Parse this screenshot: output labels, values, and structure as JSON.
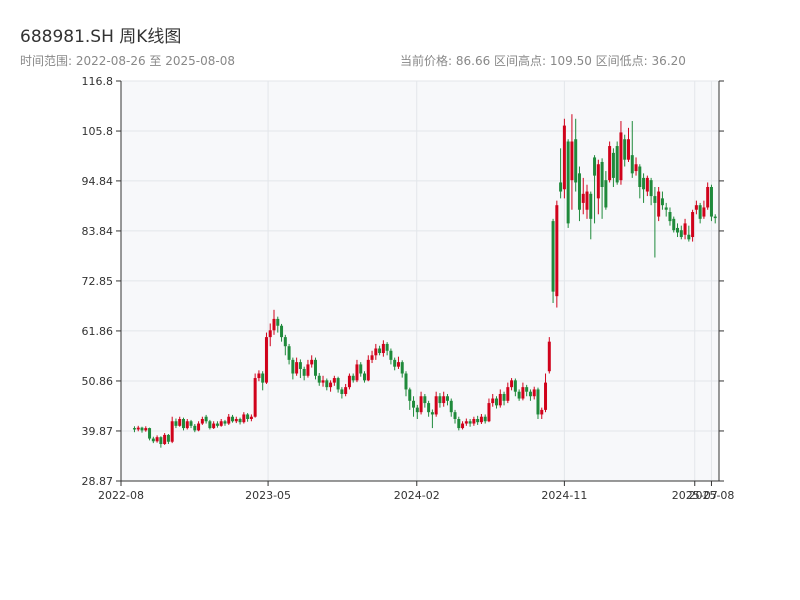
{
  "header": {
    "title": "688981.SH 周K线图",
    "range_text": "时间范围: 2022-08-26 至 2025-08-08",
    "stats_text": "当前价格: 86.66   区间高点: 109.50   区间低点: 36.20"
  },
  "colors": {
    "up": "#d0021b",
    "down": "#1f8a3b",
    "background": "#f7f8fa",
    "grid": "#e3e6ea",
    "axis": "#333333"
  },
  "chart_data": {
    "type": "candlestick",
    "title": "688981.SH 周K线图",
    "xlabel": "",
    "ylabel": "",
    "ylim": [
      28.87,
      116.8
    ],
    "y_ticks": [
      "28.87",
      "39.87",
      "50.86",
      "61.86",
      "72.85",
      "83.84",
      "94.84",
      "105.8",
      "116.8"
    ],
    "x_ticks": [
      {
        "label": "2022-08",
        "date": "2022-08-01"
      },
      {
        "label": "2023-05",
        "date": "2023-05-01"
      },
      {
        "label": "2024-02",
        "date": "2024-02-01"
      },
      {
        "label": "2024-11",
        "date": "2024-11-01"
      },
      {
        "label": "2025-07",
        "date": "2025-07-01"
      },
      {
        "label": "2025-08",
        "date": "2025-08-01"
      }
    ],
    "x_range": [
      "2022-08-01",
      "2025-08-15"
    ],
    "grid": true,
    "candles": [
      [
        "2022-08-26",
        40.5,
        40.2,
        40.9,
        39.6
      ],
      [
        "2022-09-02",
        40.2,
        40.6,
        41.0,
        39.8
      ],
      [
        "2022-09-09",
        40.6,
        40.0,
        40.8,
        39.5
      ],
      [
        "2022-09-16",
        40.0,
        40.5,
        40.9,
        39.7
      ],
      [
        "2022-09-23",
        40.5,
        38.2,
        40.6,
        37.8
      ],
      [
        "2022-09-30",
        38.2,
        37.6,
        38.6,
        37.2
      ],
      [
        "2022-10-07",
        37.6,
        38.5,
        38.9,
        37.3
      ],
      [
        "2022-10-14",
        38.5,
        37.0,
        38.7,
        36.2
      ],
      [
        "2022-10-21",
        37.0,
        39.0,
        39.4,
        36.8
      ],
      [
        "2022-10-28",
        39.0,
        37.5,
        39.2,
        37.0
      ],
      [
        "2022-11-04",
        37.5,
        42.0,
        43.0,
        37.2
      ],
      [
        "2022-11-11",
        42.0,
        41.0,
        42.6,
        40.5
      ],
      [
        "2022-11-18",
        41.0,
        42.5,
        43.0,
        40.8
      ],
      [
        "2022-11-25",
        42.5,
        40.5,
        42.8,
        40.0
      ],
      [
        "2022-12-02",
        40.5,
        42.0,
        42.5,
        40.2
      ],
      [
        "2022-12-09",
        42.0,
        41.0,
        42.3,
        40.5
      ],
      [
        "2022-12-16",
        41.0,
        40.0,
        41.4,
        39.6
      ],
      [
        "2022-12-23",
        40.0,
        41.5,
        42.0,
        39.8
      ],
      [
        "2022-12-30",
        41.5,
        42.5,
        43.0,
        41.2
      ],
      [
        "2022-01-06",
        42.5,
        43.0,
        43.8,
        42.0
      ],
      [
        "2023-01-06",
        43.0,
        42.0,
        43.4,
        41.5
      ],
      [
        "2023-01-13",
        42.0,
        40.5,
        42.3,
        40.2
      ],
      [
        "2023-01-20",
        40.5,
        41.5,
        42.0,
        40.3
      ],
      [
        "2023-01-27",
        41.5,
        41.0,
        42.0,
        40.6
      ],
      [
        "2023-02-03",
        41.0,
        42.0,
        42.5,
        40.8
      ],
      [
        "2023-02-10",
        42.0,
        41.5,
        42.3,
        41.0
      ],
      [
        "2023-02-17",
        41.5,
        43.0,
        43.6,
        41.2
      ],
      [
        "2023-02-24",
        43.0,
        42.0,
        43.4,
        41.7
      ],
      [
        "2023-03-03",
        42.0,
        42.5,
        43.0,
        41.6
      ],
      [
        "2023-03-10",
        42.5,
        41.8,
        42.8,
        41.3
      ],
      [
        "2023-03-17",
        41.8,
        43.5,
        44.0,
        41.5
      ],
      [
        "2023-03-24",
        43.5,
        42.5,
        43.8,
        41.9
      ],
      [
        "2023-03-31",
        42.5,
        43.0,
        43.5,
        42.0
      ],
      [
        "2023-04-07",
        43.0,
        51.5,
        52.5,
        42.8
      ],
      [
        "2023-04-14",
        51.5,
        52.5,
        53.2,
        50.8
      ],
      [
        "2023-04-21",
        52.5,
        50.5,
        53.0,
        48.8
      ],
      [
        "2023-04-28",
        50.5,
        60.5,
        61.5,
        50.2
      ],
      [
        "2023-05-05",
        60.5,
        62.0,
        63.5,
        58.5
      ],
      [
        "2023-05-12",
        62.0,
        64.5,
        66.5,
        61.0
      ],
      [
        "2023-05-19",
        64.5,
        63.0,
        65.0,
        61.5
      ],
      [
        "2023-05-26",
        63.0,
        60.5,
        63.4,
        59.5
      ],
      [
        "2023-06-02",
        60.5,
        58.5,
        61.0,
        56.5
      ],
      [
        "2023-06-09",
        58.5,
        55.5,
        59.0,
        54.5
      ],
      [
        "2023-06-16",
        55.5,
        52.5,
        56.0,
        51.2
      ],
      [
        "2023-06-23",
        52.5,
        55.0,
        56.0,
        52.0
      ],
      [
        "2023-06-30",
        55.0,
        53.5,
        55.6,
        51.5
      ],
      [
        "2023-07-07",
        53.5,
        52.0,
        54.0,
        51.0
      ],
      [
        "2023-07-14",
        52.0,
        54.5,
        55.5,
        51.6
      ],
      [
        "2023-07-21",
        54.5,
        55.5,
        56.5,
        53.8
      ],
      [
        "2023-07-28",
        55.5,
        52.0,
        56.0,
        51.2
      ],
      [
        "2023-08-04",
        52.0,
        50.5,
        52.6,
        49.8
      ],
      [
        "2023-08-11",
        50.5,
        51.0,
        52.0,
        49.6
      ],
      [
        "2023-08-18",
        51.0,
        49.5,
        51.4,
        48.8
      ],
      [
        "2023-08-25",
        49.5,
        50.5,
        51.0,
        48.5
      ],
      [
        "2023-09-01",
        50.5,
        51.5,
        52.0,
        49.8
      ],
      [
        "2023-09-08",
        51.5,
        49.0,
        51.8,
        48.3
      ],
      [
        "2023-09-15",
        49.0,
        48.0,
        49.5,
        47.0
      ],
      [
        "2023-09-22",
        48.0,
        49.5,
        50.2,
        47.5
      ],
      [
        "2023-09-29",
        49.5,
        52.0,
        52.5,
        49.0
      ],
      [
        "2023-10-06",
        52.0,
        51.0,
        52.5,
        50.5
      ],
      [
        "2023-10-13",
        51.0,
        54.5,
        55.5,
        50.6
      ],
      [
        "2023-10-20",
        54.5,
        52.5,
        55.0,
        51.8
      ],
      [
        "2023-10-27",
        52.5,
        51.0,
        53.0,
        50.5
      ],
      [
        "2023-11-03",
        51.0,
        55.5,
        56.5,
        50.8
      ],
      [
        "2023-11-10",
        55.5,
        56.5,
        57.5,
        54.8
      ],
      [
        "2023-11-17",
        56.5,
        58.0,
        59.0,
        55.5
      ],
      [
        "2023-11-24",
        58.0,
        57.0,
        58.6,
        56.5
      ],
      [
        "2023-12-01",
        57.0,
        59.0,
        59.8,
        56.2
      ],
      [
        "2023-12-08",
        59.0,
        57.5,
        59.4,
        56.5
      ],
      [
        "2023-12-15",
        57.5,
        55.5,
        58.0,
        54.5
      ],
      [
        "2023-12-22",
        55.5,
        54.0,
        56.0,
        53.2
      ],
      [
        "2023-12-29",
        54.0,
        55.0,
        56.2,
        53.5
      ],
      [
        "2024-01-05",
        55.0,
        52.5,
        55.4,
        51.6
      ],
      [
        "2024-01-12",
        52.5,
        49.0,
        53.0,
        47.5
      ],
      [
        "2024-01-19",
        49.0,
        46.5,
        49.4,
        44.5
      ],
      [
        "2024-01-26",
        46.5,
        45.0,
        47.5,
        43.0
      ],
      [
        "2024-02-02",
        45.0,
        44.0,
        45.6,
        42.5
      ],
      [
        "2024-02-09",
        44.0,
        47.5,
        48.5,
        43.5
      ],
      [
        "2024-02-16",
        47.5,
        46.0,
        48.0,
        45.0
      ],
      [
        "2024-02-23",
        46.0,
        44.0,
        46.5,
        43.0
      ],
      [
        "2024-03-01",
        44.0,
        43.5,
        44.6,
        40.5
      ],
      [
        "2024-03-08",
        43.5,
        47.5,
        48.5,
        43.0
      ],
      [
        "2024-03-15",
        47.5,
        46.0,
        48.2,
        45.0
      ],
      [
        "2024-03-22",
        46.0,
        47.5,
        48.5,
        45.2
      ],
      [
        "2024-03-29",
        47.5,
        46.5,
        48.0,
        45.5
      ],
      [
        "2024-04-05",
        46.5,
        44.0,
        47.0,
        43.0
      ],
      [
        "2024-04-12",
        44.0,
        42.5,
        44.5,
        41.5
      ],
      [
        "2024-04-19",
        42.5,
        40.5,
        43.0,
        40.0
      ],
      [
        "2024-04-26",
        40.5,
        41.5,
        42.0,
        40.2
      ],
      [
        "2024-05-03",
        41.5,
        42.0,
        42.6,
        41.0
      ],
      [
        "2024-05-10",
        42.0,
        41.5,
        42.5,
        40.8
      ],
      [
        "2024-05-17",
        41.5,
        42.5,
        43.0,
        41.0
      ],
      [
        "2024-05-24",
        42.5,
        41.8,
        43.2,
        41.2
      ],
      [
        "2024-05-31",
        41.8,
        43.0,
        43.6,
        41.4
      ],
      [
        "2024-06-07",
        43.0,
        42.0,
        43.5,
        41.5
      ],
      [
        "2024-06-14",
        42.0,
        46.0,
        47.0,
        41.8
      ],
      [
        "2024-06-21",
        46.0,
        47.0,
        48.0,
        45.2
      ],
      [
        "2024-06-28",
        47.0,
        45.5,
        47.5,
        44.8
      ],
      [
        "2024-07-05",
        45.5,
        48.0,
        49.0,
        45.0
      ],
      [
        "2024-07-12",
        48.0,
        46.5,
        48.5,
        45.5
      ],
      [
        "2024-07-19",
        46.5,
        49.5,
        50.5,
        46.0
      ],
      [
        "2024-07-26",
        49.5,
        51.0,
        51.5,
        48.8
      ],
      [
        "2024-08-02",
        51.0,
        48.5,
        51.4,
        47.5
      ],
      [
        "2024-08-09",
        48.5,
        47.0,
        49.0,
        46.5
      ],
      [
        "2024-08-16",
        47.0,
        49.5,
        50.5,
        46.6
      ],
      [
        "2024-08-23",
        49.5,
        48.5,
        50.0,
        47.5
      ],
      [
        "2024-08-30",
        48.5,
        47.5,
        49.0,
        46.5
      ],
      [
        "2024-09-06",
        47.5,
        49.0,
        49.6,
        46.8
      ],
      [
        "2024-09-13",
        49.0,
        43.5,
        49.4,
        42.5
      ],
      [
        "2024-09-20",
        43.5,
        44.5,
        45.0,
        42.5
      ],
      [
        "2024-09-27",
        44.5,
        50.5,
        52.5,
        44.0
      ],
      [
        "2024-10-04",
        53.0,
        59.5,
        60.5,
        52.5
      ],
      [
        "2024-10-11",
        86.0,
        70.5,
        86.5,
        68.0
      ],
      [
        "2024-10-18",
        69.5,
        89.5,
        90.5,
        67.0
      ],
      [
        "2024-10-25",
        94.5,
        92.5,
        102.0,
        91.0
      ],
      [
        "2024-11-01",
        93.0,
        107.0,
        108.5,
        91.0
      ],
      [
        "2024-11-08",
        103.5,
        85.5,
        104.0,
        84.5
      ],
      [
        "2024-11-15",
        95.0,
        103.5,
        109.5,
        88.5
      ],
      [
        "2024-11-22",
        104.0,
        94.5,
        108.5,
        92.5
      ],
      [
        "2024-11-29",
        96.5,
        88.5,
        98.0,
        86.0
      ],
      [
        "2024-12-06",
        90.0,
        92.0,
        95.5,
        87.5
      ],
      [
        "2024-12-13",
        88.5,
        92.5,
        94.0,
        86.5
      ],
      [
        "2024-12-20",
        92.0,
        86.5,
        92.5,
        82.0
      ],
      [
        "2024-12-27",
        100.0,
        96.0,
        100.5,
        85.5
      ],
      [
        "2025-01-03",
        91.0,
        98.5,
        99.5,
        87.5
      ],
      [
        "2025-01-10",
        99.0,
        93.5,
        99.8,
        86.5
      ],
      [
        "2025-01-17",
        95.0,
        89.0,
        97.0,
        88.5
      ],
      [
        "2025-01-24",
        95.0,
        102.5,
        103.5,
        94.5
      ],
      [
        "2025-01-31",
        101.0,
        95.5,
        102.0,
        93.5
      ],
      [
        "2025-02-07",
        102.5,
        94.5,
        103.5,
        94.0
      ],
      [
        "2025-02-14",
        95.0,
        105.5,
        108.0,
        94.0
      ],
      [
        "2025-02-21",
        104.0,
        99.5,
        105.0,
        98.0
      ],
      [
        "2025-02-28",
        99.5,
        104.0,
        106.5,
        99.0
      ],
      [
        "2025-03-07",
        100.5,
        96.5,
        108.0,
        95.5
      ],
      [
        "2025-03-14",
        97.0,
        98.5,
        100.0,
        96.0
      ],
      [
        "2025-03-21",
        98.0,
        93.5,
        98.5,
        91.0
      ],
      [
        "2025-03-28",
        95.5,
        93.0,
        96.5,
        90.0
      ],
      [
        "2025-04-04",
        92.5,
        95.5,
        96.0,
        91.5
      ],
      [
        "2025-04-11",
        95.0,
        91.5,
        95.5,
        89.5
      ],
      [
        "2025-04-18",
        91.5,
        90.0,
        93.5,
        78.0
      ],
      [
        "2025-04-25",
        87.0,
        92.5,
        93.5,
        86.0
      ],
      [
        "2025-05-02",
        91.0,
        89.5,
        92.5,
        88.5
      ],
      [
        "2025-05-09",
        89.0,
        88.5,
        90.0,
        87.0
      ],
      [
        "2025-05-16",
        88.0,
        86.0,
        89.0,
        85.0
      ],
      [
        "2025-05-23",
        86.5,
        84.0,
        87.0,
        83.5
      ],
      [
        "2025-05-30",
        84.5,
        83.5,
        85.5,
        82.5
      ],
      [
        "2025-06-06",
        84.0,
        82.5,
        85.0,
        82.0
      ],
      [
        "2025-06-13",
        83.0,
        85.5,
        86.5,
        82.0
      ],
      [
        "2025-06-20",
        83.0,
        82.0,
        85.0,
        81.5
      ],
      [
        "2025-06-27",
        82.5,
        88.0,
        88.5,
        81.5
      ],
      [
        "2025-07-04",
        88.5,
        89.5,
        90.5,
        87.5
      ],
      [
        "2025-07-11",
        89.5,
        86.5,
        90.0,
        85.5
      ],
      [
        "2025-07-18",
        87.0,
        89.0,
        90.5,
        86.5
      ],
      [
        "2025-07-25",
        89.0,
        93.5,
        94.5,
        88.5
      ],
      [
        "2025-08-01",
        93.5,
        87.0,
        94.0,
        86.0
      ],
      [
        "2025-08-08",
        87.0,
        86.66,
        87.5,
        85.5
      ]
    ]
  }
}
